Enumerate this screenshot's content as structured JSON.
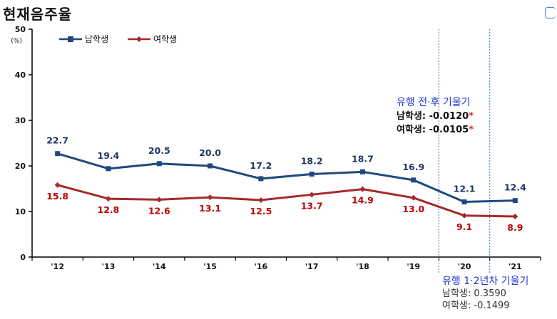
{
  "title": "현재음주율",
  "legend": {
    "male": "남학생",
    "female": "여학생"
  },
  "note_top": {
    "heading": "유행 전·후 기울기",
    "male_label": "남학생",
    "male_value": ": -0.0120",
    "female_label": "여학생",
    "female_value": ": -0.0105",
    "star": "*"
  },
  "note_bottom": {
    "heading": "유행 1·2년차 기울기",
    "male": "남학생: 0.3590",
    "female": "여학생: -0.1499"
  },
  "colors": {
    "male": "#1f497d",
    "female": "#a52a2a",
    "male_label": "#1f3864",
    "female_label": "#c00000",
    "divider": "#2e75b6"
  },
  "chart_data": {
    "type": "line",
    "categories": [
      "'12",
      "'13",
      "'14",
      "'15",
      "'16",
      "'17",
      "'18",
      "'19",
      "'20",
      "'21"
    ],
    "series": [
      {
        "name": "남학생",
        "values": [
          22.7,
          19.4,
          20.5,
          20.0,
          17.2,
          18.2,
          18.7,
          16.9,
          12.1,
          12.4
        ],
        "labels": [
          "22.7",
          "19.4",
          "20.5",
          "20.0",
          "17.2",
          "18.2",
          "18.7",
          "16.9",
          "12.1",
          "12.4"
        ]
      },
      {
        "name": "여학생",
        "values": [
          15.8,
          12.8,
          12.6,
          13.1,
          12.5,
          13.7,
          14.9,
          13.0,
          9.1,
          8.9
        ],
        "labels": [
          "15.8",
          "12.8",
          "12.6",
          "13.1",
          "12.5",
          "13.7",
          "14.9",
          "13.0",
          "9.1",
          "8.9"
        ]
      }
    ],
    "ylim": [
      0,
      50
    ],
    "yticks": [
      "0",
      "10",
      "20",
      "30",
      "40",
      "50"
    ],
    "yunit": "(%)",
    "legend_position": "top-left",
    "grid": false,
    "divider_between": [
      "'19",
      "'20",
      "'21"
    ]
  }
}
